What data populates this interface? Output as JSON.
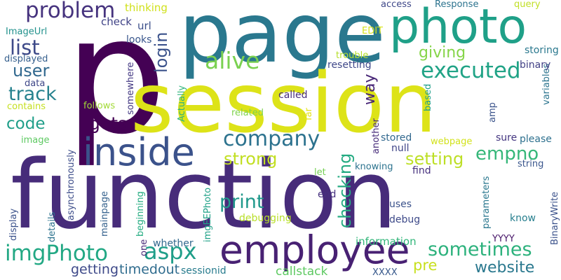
{
  "cloud": {
    "words": [
      {
        "text": "p",
        "color": "#440154"
      },
      {
        "text": "page",
        "color": "#2a788e"
      },
      {
        "text": "session",
        "color": "#dde318"
      },
      {
        "text": "function",
        "color": "#472c7a"
      },
      {
        "text": "photo",
        "color": "#1fa088"
      },
      {
        "text": "inside",
        "color": "#3b528b"
      },
      {
        "text": "employee",
        "color": "#482173"
      },
      {
        "text": "problem",
        "color": "#46337e"
      },
      {
        "text": "company",
        "color": "#2c728e"
      },
      {
        "text": "executed",
        "color": "#20a386"
      },
      {
        "text": "alive",
        "color": "#7ad151"
      },
      {
        "text": "list",
        "color": "#3e4a89"
      },
      {
        "text": "user",
        "color": "#31688e"
      },
      {
        "text": "track",
        "color": "#26828e"
      },
      {
        "text": "code",
        "color": "#1f9e89"
      },
      {
        "text": "gets",
        "color": "#440154"
      },
      {
        "text": "login",
        "color": "#3b528b"
      },
      {
        "text": "giving",
        "color": "#86d549"
      },
      {
        "text": "strong",
        "color": "#c2df23"
      },
      {
        "text": "setting",
        "color": "#bddf26"
      },
      {
        "text": "empno",
        "color": "#35b779"
      },
      {
        "text": "checking",
        "color": "#25ab82"
      },
      {
        "text": "way",
        "color": "#482677"
      },
      {
        "text": "print",
        "color": "#1f988b"
      },
      {
        "text": "imgPhoto",
        "color": "#22a884"
      },
      {
        "text": "aspx",
        "color": "#1f9e89"
      },
      {
        "text": "sometimes",
        "color": "#2db27d"
      },
      {
        "text": "website",
        "color": "#2a788e"
      },
      {
        "text": "getting",
        "color": "#3e4989"
      },
      {
        "text": "timedout",
        "color": "#2f6c8e"
      },
      {
        "text": "pre",
        "color": "#c8e020"
      },
      {
        "text": "thinking",
        "color": "#d0e11c"
      },
      {
        "text": "check",
        "color": "#414487"
      },
      {
        "text": "url",
        "color": "#3c4f8a"
      },
      {
        "text": "looks",
        "color": "#39568c"
      },
      {
        "text": "ImageUrl",
        "color": "#21918c"
      },
      {
        "text": "displayed",
        "color": "#355f8d"
      },
      {
        "text": "data",
        "color": "#3f4788"
      },
      {
        "text": "contains",
        "color": "#c5e021"
      },
      {
        "text": "follows",
        "color": "#a2da37"
      },
      {
        "text": "somewhere",
        "color": "#443983"
      },
      {
        "text": "Actually",
        "color": "#2eb37c"
      },
      {
        "text": "related",
        "color": "#7fd34e"
      },
      {
        "text": "far",
        "color": "#e5e419"
      },
      {
        "text": "called",
        "color": "#472d7b"
      },
      {
        "text": "image",
        "color": "#5ec962"
      },
      {
        "text": "asynchronously",
        "color": "#3d4d8a"
      },
      {
        "text": "display",
        "color": "#3b528b"
      },
      {
        "text": "details",
        "color": "#2c728e"
      },
      {
        "text": "mainpage",
        "color": "#34618d"
      },
      {
        "text": "beginning",
        "color": "#25ac82"
      },
      {
        "text": "imgEEPhoto",
        "color": "#1fa187"
      },
      {
        "text": "whether",
        "color": "#31688e"
      },
      {
        "text": "one",
        "color": "#482878"
      },
      {
        "text": "let",
        "color": "#75d054"
      },
      {
        "text": "end",
        "color": "#46307e"
      },
      {
        "text": "debugging",
        "color": "#b8de29"
      },
      {
        "text": "sessionid",
        "color": "#287c8e"
      },
      {
        "text": "callstack",
        "color": "#5ec962"
      },
      {
        "text": "information",
        "color": "#32b67a"
      },
      {
        "text": "XXXX",
        "color": "#38598c"
      },
      {
        "text": "YYYY",
        "color": "#481769"
      },
      {
        "text": "debug",
        "color": "#3e4a89"
      },
      {
        "text": "uses",
        "color": "#3b528b"
      },
      {
        "text": "find",
        "color": "#46307e"
      },
      {
        "text": "knowing",
        "color": "#2c738e"
      },
      {
        "text": "null",
        "color": "#404588"
      },
      {
        "text": "stored",
        "color": "#31688e"
      },
      {
        "text": "another",
        "color": "#472c7a"
      },
      {
        "text": "webpage",
        "color": "#d2e21b"
      },
      {
        "text": "sure",
        "color": "#453781"
      },
      {
        "text": "please",
        "color": "#2d708e"
      },
      {
        "text": "string",
        "color": "#39558c"
      },
      {
        "text": "parameters",
        "color": "#2a778e"
      },
      {
        "text": "know",
        "color": "#277f8e"
      },
      {
        "text": "BinaryWrite",
        "color": "#3b528b"
      },
      {
        "text": "trouble",
        "color": "#b5de2b"
      },
      {
        "text": "resetting",
        "color": "#3f4889"
      },
      {
        "text": "based",
        "color": "#1f9e89"
      },
      {
        "text": "amp",
        "color": "#3a538b"
      },
      {
        "text": "variables",
        "color": "#2b748e"
      },
      {
        "text": "binary",
        "color": "#424186"
      },
      {
        "text": "storing",
        "color": "#2a788e"
      },
      {
        "text": "access",
        "color": "#3f4889"
      },
      {
        "text": "Response",
        "color": "#2c738e"
      },
      {
        "text": "query",
        "color": "#c0df25"
      },
      {
        "text": "EDIT",
        "color": "#d5e21a"
      }
    ]
  }
}
